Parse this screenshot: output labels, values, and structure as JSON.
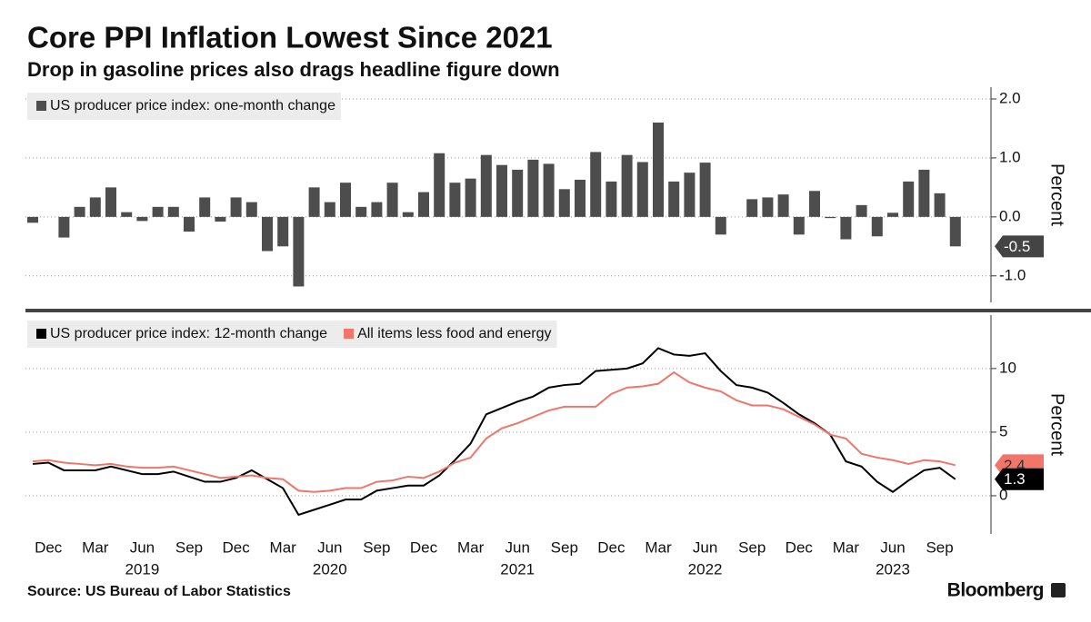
{
  "title": "Core PPI Inflation Lowest Since 2021",
  "subtitle": "Drop in gasoline prices also drags headline figure down",
  "source": "Source: US Bureau of Labor Statistics",
  "brand": "Bloomberg",
  "chart_data": [
    {
      "type": "bar",
      "y_label": "Percent",
      "grid": true,
      "last_value_tag": true,
      "ylim": [
        -1.45,
        2.2
      ],
      "yticks": [
        {
          "value": -1,
          "label": "-1.0"
        },
        {
          "value": 0,
          "label": "0.0"
        },
        {
          "value": 1,
          "label": "1.0"
        },
        {
          "value": 2,
          "label": "2.0"
        }
      ],
      "series": [
        {
          "name": "US producer price index: one-month change",
          "color": "#4d4d4d",
          "values": [
            -0.1,
            0.0,
            -0.35,
            0.17,
            0.33,
            0.5,
            0.08,
            -0.07,
            0.17,
            0.17,
            -0.25,
            0.33,
            -0.08,
            0.33,
            0.25,
            -0.58,
            -0.5,
            -1.18,
            0.5,
            0.25,
            0.58,
            0.17,
            0.25,
            0.58,
            0.08,
            0.42,
            1.08,
            0.58,
            0.65,
            1.05,
            0.88,
            0.8,
            0.97,
            0.9,
            0.47,
            0.63,
            1.1,
            0.6,
            1.05,
            0.93,
            1.6,
            0.6,
            0.75,
            0.92,
            -0.3,
            0.0,
            0.3,
            0.33,
            0.38,
            -0.3,
            0.44,
            -0.02,
            -0.38,
            0.2,
            -0.33,
            0.07,
            0.6,
            0.8,
            0.4,
            -0.5
          ]
        }
      ]
    },
    {
      "type": "line",
      "y_label": "Percent",
      "grid": true,
      "last_value_tag": true,
      "ylim": [
        -3,
        14.2
      ],
      "yticks": [
        0,
        5,
        10
      ],
      "categories": [
        null,
        "Dec",
        null,
        null,
        "Mar",
        null,
        null,
        "Jun",
        null,
        null,
        "Sep",
        null,
        null,
        "Dec",
        null,
        null,
        "Mar",
        null,
        null,
        "Jun",
        null,
        null,
        "Sep",
        null,
        null,
        "Dec",
        null,
        null,
        "Mar",
        null,
        null,
        "Jun",
        null,
        null,
        "Sep",
        null,
        null,
        "Dec",
        null,
        null,
        "Mar",
        null,
        null,
        "Jun",
        null,
        null,
        "Sep",
        null,
        null,
        "Dec",
        null,
        null,
        "Mar",
        null,
        null,
        "Jun",
        null,
        null,
        "Sep",
        null
      ],
      "years": [
        "2019",
        "2020",
        "2021",
        "2022",
        "2023"
      ],
      "series": [
        {
          "name": "US producer price index: 12-month change",
          "color": "#000000",
          "values": [
            2.5,
            2.6,
            2.0,
            2.0,
            2.0,
            2.3,
            2.0,
            1.7,
            1.7,
            1.9,
            1.5,
            1.1,
            1.1,
            1.4,
            2.0,
            1.3,
            0.6,
            -1.5,
            -1.1,
            -0.7,
            -0.3,
            -0.3,
            0.4,
            0.6,
            0.8,
            0.8,
            1.6,
            2.8,
            4.1,
            6.4,
            6.9,
            7.4,
            7.8,
            8.5,
            8.7,
            8.8,
            9.8,
            9.9,
            10.0,
            10.4,
            11.6,
            11.1,
            11.0,
            11.2,
            9.8,
            8.7,
            8.5,
            8.1,
            7.3,
            6.4,
            5.7,
            4.8,
            2.7,
            2.3,
            1.1,
            0.3,
            1.2,
            2.0,
            2.2,
            1.3
          ]
        },
        {
          "name": "All items less food and energy",
          "color": "#f0766a",
          "values": [
            2.7,
            2.8,
            2.6,
            2.5,
            2.4,
            2.5,
            2.3,
            2.2,
            2.2,
            2.3,
            2.0,
            1.7,
            1.4,
            1.5,
            1.6,
            1.4,
            1.3,
            0.4,
            0.3,
            0.4,
            0.6,
            0.6,
            1.1,
            1.2,
            1.5,
            1.4,
            1.9,
            2.6,
            3.0,
            4.5,
            5.3,
            5.7,
            6.2,
            6.7,
            7.0,
            7.0,
            7.0,
            8.0,
            8.5,
            8.6,
            8.8,
            9.7,
            8.9,
            8.5,
            8.2,
            7.5,
            7.1,
            7.1,
            6.8,
            6.2,
            5.6,
            4.8,
            4.5,
            3.3,
            3.0,
            2.8,
            2.5,
            2.8,
            2.7,
            2.4
          ]
        }
      ]
    }
  ]
}
